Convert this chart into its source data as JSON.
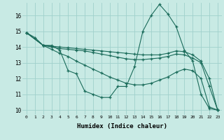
{
  "xlabel": "Humidex (Indice chaleur)",
  "bg_color": "#c8eae4",
  "grid_color": "#a0d0cc",
  "line_color": "#1a6b5a",
  "xlim": [
    -0.5,
    23.5
  ],
  "ylim": [
    9.7,
    16.8
  ],
  "xticks": [
    0,
    1,
    2,
    3,
    4,
    5,
    6,
    7,
    8,
    9,
    10,
    11,
    12,
    13,
    14,
    15,
    16,
    17,
    18,
    19,
    20,
    21,
    22,
    23
  ],
  "yticks": [
    10,
    11,
    12,
    13,
    14,
    15,
    16
  ],
  "series": [
    {
      "x": [
        0,
        1,
        2,
        3,
        4,
        5,
        6,
        7,
        8,
        9,
        10,
        11,
        12,
        13,
        14,
        15,
        16,
        17,
        18,
        19,
        20,
        21,
        22,
        23
      ],
      "y": [
        14.9,
        14.6,
        14.1,
        14.1,
        13.8,
        12.5,
        12.3,
        11.2,
        11.0,
        10.8,
        10.8,
        11.5,
        11.5,
        12.75,
        15.0,
        16.0,
        16.7,
        16.1,
        15.3,
        13.8,
        13.1,
        11.0,
        10.1,
        10.0
      ]
    },
    {
      "x": [
        0,
        2,
        3,
        4,
        5,
        6,
        7,
        8,
        9,
        10,
        11,
        12,
        13,
        14,
        15,
        16,
        17,
        18,
        19,
        20,
        21,
        22,
        23
      ],
      "y": [
        14.9,
        14.1,
        14.05,
        14.0,
        13.95,
        13.9,
        13.85,
        13.8,
        13.75,
        13.7,
        13.65,
        13.6,
        13.55,
        13.5,
        13.5,
        13.5,
        13.6,
        13.75,
        13.7,
        13.5,
        13.1,
        12.0,
        10.0
      ]
    },
    {
      "x": [
        0,
        2,
        3,
        4,
        5,
        6,
        7,
        8,
        9,
        10,
        11,
        12,
        13,
        14,
        15,
        16,
        17,
        18,
        19,
        20,
        21,
        22,
        23
      ],
      "y": [
        14.9,
        14.1,
        14.0,
        13.9,
        13.85,
        13.8,
        13.75,
        13.65,
        13.55,
        13.45,
        13.35,
        13.25,
        13.2,
        13.2,
        13.25,
        13.3,
        13.4,
        13.55,
        13.5,
        13.3,
        13.0,
        11.5,
        10.0
      ]
    },
    {
      "x": [
        0,
        2,
        3,
        4,
        5,
        6,
        7,
        8,
        9,
        10,
        11,
        12,
        13,
        14,
        15,
        16,
        17,
        18,
        19,
        20,
        21,
        22,
        23
      ],
      "y": [
        14.9,
        14.1,
        13.85,
        13.6,
        13.4,
        13.1,
        12.85,
        12.6,
        12.35,
        12.1,
        11.9,
        11.7,
        11.6,
        11.6,
        11.7,
        11.9,
        12.1,
        12.4,
        12.6,
        12.5,
        12.0,
        10.2,
        10.0
      ]
    }
  ]
}
